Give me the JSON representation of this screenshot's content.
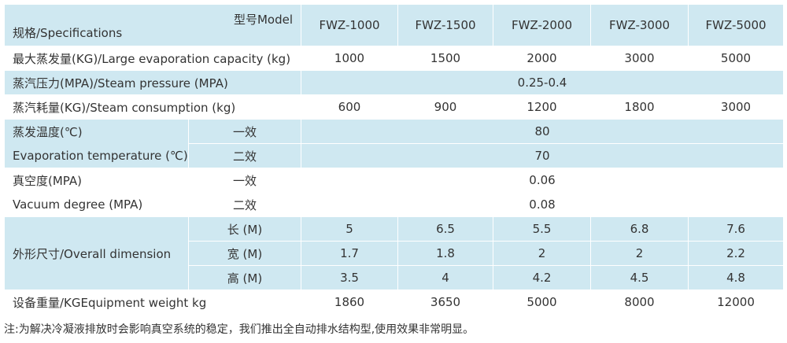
{
  "header": {
    "model_label": "型号Model",
    "spec_label": "规格/Specifications",
    "models": [
      "FWZ-1000",
      "FWZ-1500",
      "FWZ-2000",
      "FWZ-3000",
      "FWZ-5000"
    ]
  },
  "rows": {
    "evaporation_capacity": {
      "label": "最大蒸发量(KG)/Large evaporation capacity (kg)",
      "values": [
        "1000",
        "1500",
        "2000",
        "3000",
        "5000"
      ]
    },
    "steam_pressure": {
      "label": "蒸汽压力(MPA)/Steam pressure (MPA)",
      "value": "0.25-0.4"
    },
    "steam_consumption": {
      "label": "蒸汽耗量(KG)/Steam consumption (kg)",
      "values": [
        "600",
        "900",
        "1200",
        "1800",
        "3000"
      ]
    },
    "evaporation_temperature": {
      "label_cn": "蒸发温度(℃)",
      "label_en": "Evaporation temperature (℃)",
      "sub1": "一效",
      "value1": "80",
      "sub2": "二效",
      "value2": "70"
    },
    "vacuum_degree": {
      "label_cn": "真空度(MPA)",
      "label_en": "Vacuum degree (MPA)",
      "sub1": "一效",
      "value1": "0.06",
      "sub2": "二效",
      "value2": "0.08"
    },
    "overall_dimension": {
      "label": "外形尺寸/Overall dimension",
      "length": {
        "label": "长  (M)",
        "values": [
          "5",
          "6.5",
          "5.5",
          "6.8",
          "7.6"
        ]
      },
      "width": {
        "label": "宽  (M)",
        "values": [
          "1.7",
          "1.8",
          "2",
          "2",
          "2.2"
        ]
      },
      "height": {
        "label": "高  (M)",
        "values": [
          "3.5",
          "4",
          "4.2",
          "4.5",
          "4.8"
        ]
      }
    },
    "equipment_weight": {
      "label": "设备重量/KGEquipment weight kg",
      "values": [
        "1860",
        "3650",
        "5000",
        "8000",
        "12000"
      ]
    }
  },
  "note": "注:为解决冷凝液排放时会影响真空系统的稳定，我们推出全自动排水结构型,使用效果非常明显。",
  "colors": {
    "band": "#cfe8f1",
    "text": "#333333"
  }
}
